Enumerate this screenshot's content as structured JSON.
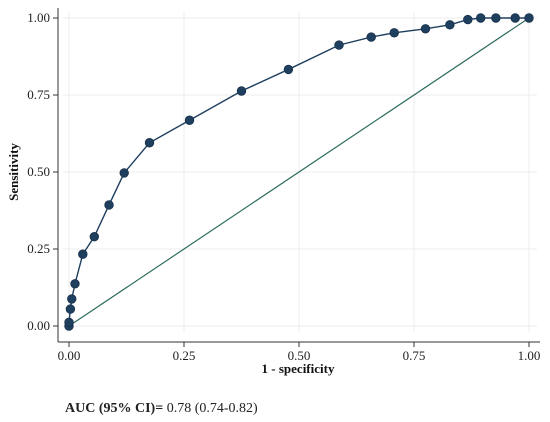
{
  "chart_data": {
    "type": "line",
    "xlabel": "1 - specificity",
    "ylabel": "Sensitivity",
    "xlim": [
      0,
      1
    ],
    "ylim": [
      0,
      1
    ],
    "x_ticks": [
      "0.00",
      "0.25",
      "0.50",
      "0.75",
      "1.00"
    ],
    "y_ticks": [
      "0.00",
      "0.25",
      "0.50",
      "0.75",
      "1.00"
    ],
    "grid": true,
    "series": [
      {
        "color": "#1f3f5f",
        "x": [
          0.0,
          0.0,
          0.003,
          0.006,
          0.013,
          0.03,
          0.055,
          0.087,
          0.12,
          0.175,
          0.262,
          0.375,
          0.477,
          0.587,
          0.657,
          0.707,
          0.775,
          0.828,
          0.867,
          0.895,
          0.928,
          0.97,
          1.0
        ],
        "y": [
          0.0,
          0.012,
          0.055,
          0.088,
          0.137,
          0.233,
          0.29,
          0.393,
          0.497,
          0.595,
          0.668,
          0.763,
          0.833,
          0.912,
          0.938,
          0.952,
          0.965,
          0.978,
          0.995,
          1.0,
          1.0,
          1.0,
          1.0
        ]
      },
      {
        "color": "#2e6b5e",
        "x": [
          0,
          1
        ],
        "y": [
          0,
          1
        ]
      }
    ]
  },
  "caption": {
    "label": "AUC (95% CI)=",
    "value": " 0.78 (0.74-0.82)"
  }
}
